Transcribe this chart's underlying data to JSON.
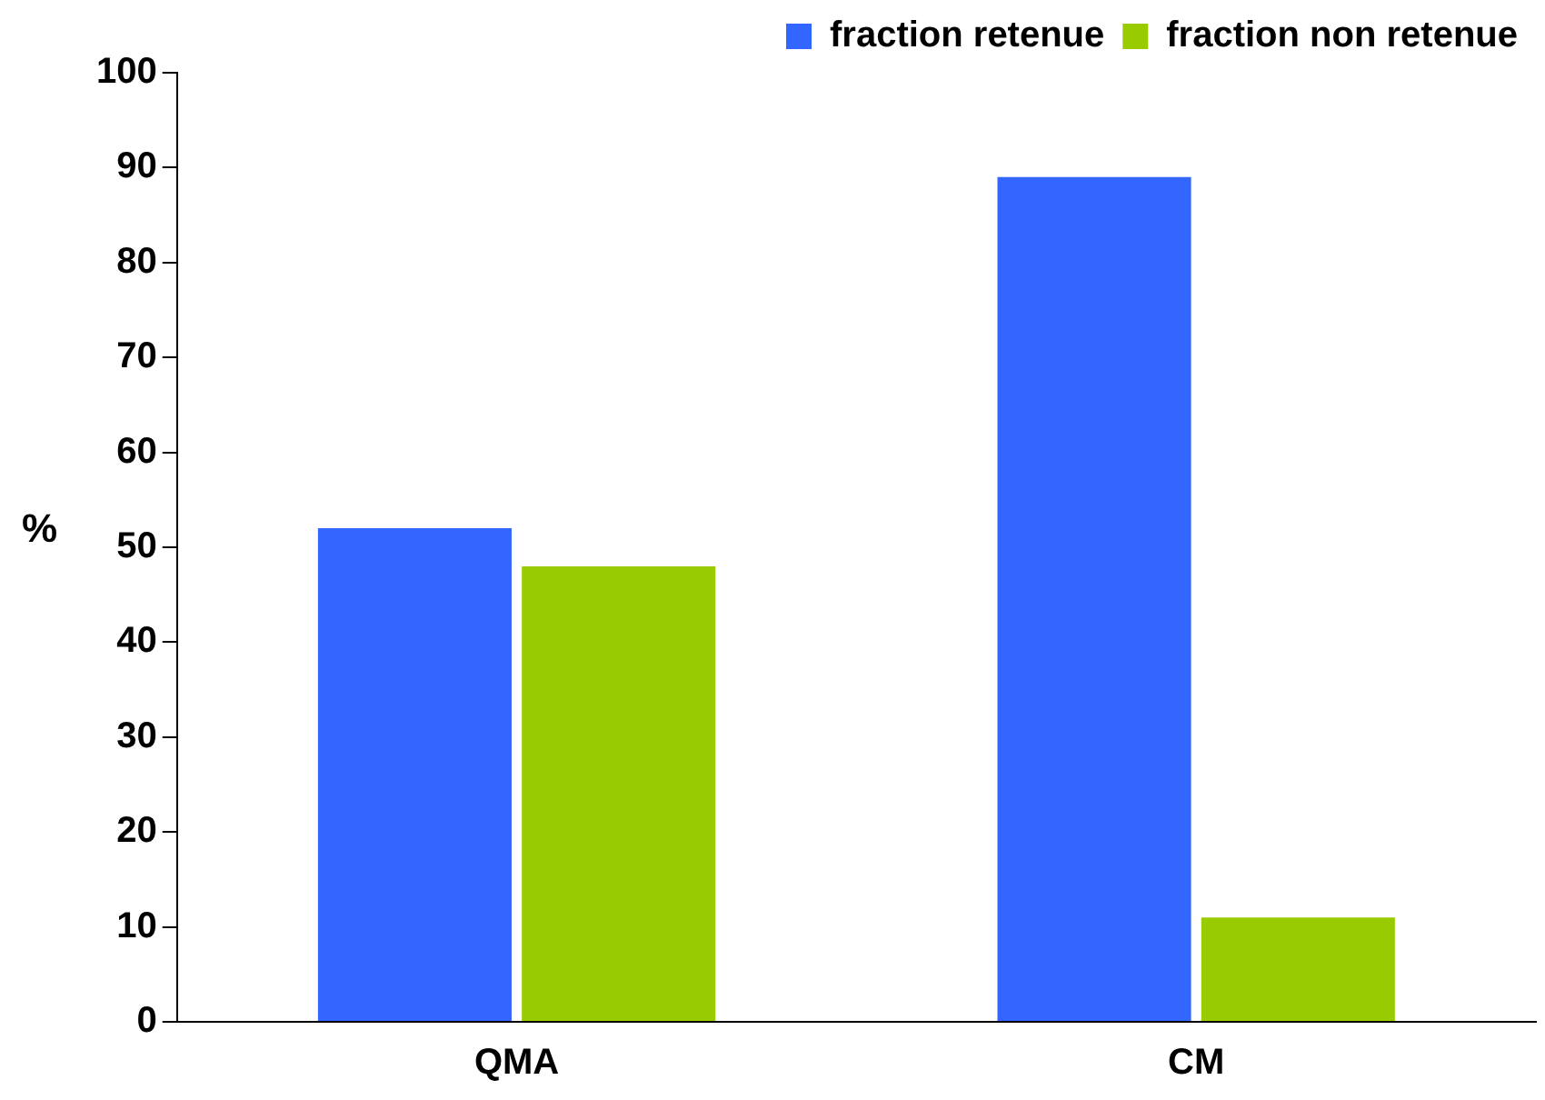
{
  "chart_data": {
    "type": "bar",
    "ylabel": "%",
    "categories": [
      "QMA",
      "CM"
    ],
    "series": [
      {
        "name": "fraction retenue",
        "color": "#3366ff",
        "values": [
          52,
          89
        ]
      },
      {
        "name": "fraction non retenue",
        "color": "#99cc00",
        "values": [
          48,
          11
        ]
      }
    ],
    "ylim": [
      0,
      100
    ],
    "yticks": [
      0,
      10,
      20,
      30,
      40,
      50,
      60,
      70,
      80,
      90,
      100
    ],
    "grid": false,
    "legend": "top right"
  }
}
